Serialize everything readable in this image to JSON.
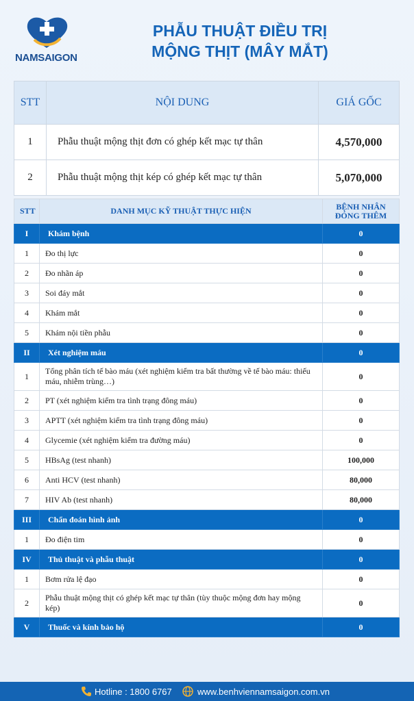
{
  "header": {
    "logo_text": "NAMSAIGON",
    "title_lines": [
      "PHẪU THUẬT ĐIỀU TRỊ",
      "MỘNG THỊT (MÂY MẮT)"
    ]
  },
  "price_table": {
    "columns": [
      "STT",
      "NỘI DUNG",
      "GIÁ GỐC"
    ],
    "rows": [
      [
        "1",
        "Phẫu thuật mộng thịt đơn có ghép kết mạc tự thân",
        "4,570,000"
      ],
      [
        "2",
        "Phẫu thuật mộng thịt kép có ghép kết mạc tự thân",
        "5,070,000"
      ]
    ]
  },
  "detail_table": {
    "columns": [
      "STT",
      "DANH MỤC KỸ THUẬT THỰC HIỆN",
      "BỆNH NHÂN ĐÓNG THÊM"
    ],
    "rows": [
      [
        "I",
        "Khám bệnh",
        "0"
      ],
      [
        "1",
        "Đo thị lực",
        "0"
      ],
      [
        "2",
        "Đo nhãn áp",
        "0"
      ],
      [
        "3",
        "Soi đáy mắt",
        "0"
      ],
      [
        "4",
        "Khám mắt",
        "0"
      ],
      [
        "5",
        "Khám nội tiền phẫu",
        "0"
      ],
      [
        "II",
        "Xét nghiệm máu",
        "0"
      ],
      [
        "1",
        "Tổng phân tích tế bào máu (xét nghiệm kiểm tra bất thường về tế bào máu: thiếu máu, nhiễm trùng…)",
        "0"
      ],
      [
        "2",
        "PT (xét nghiệm kiểm tra tình trạng đông máu)",
        "0"
      ],
      [
        "3",
        "APTT (xét nghiệm kiểm tra tình trạng đông máu)",
        "0"
      ],
      [
        "4",
        "Glycemie (xét nghiệm kiểm tra đường máu)",
        "0"
      ],
      [
        "5",
        "HBsAg (test nhanh)",
        "100,000"
      ],
      [
        "6",
        "Anti HCV (test nhanh)",
        "80,000"
      ],
      [
        "7",
        "HIV Ab (test nhanh)",
        "80,000"
      ],
      [
        "III",
        "Chẩn đoán hình ảnh",
        "0"
      ],
      [
        "1",
        "Đo điện tim",
        "0"
      ],
      [
        "IV",
        "Thủ thuật và phẫu thuật",
        "0"
      ],
      [
        "1",
        "Bơm rửa lệ đạo",
        "0"
      ],
      [
        "2",
        "Phẫu thuật mộng thịt có ghép kết mạc tự thân (tùy thuộc mộng đơn hay mộng kép)",
        "0"
      ],
      [
        "V",
        "Thuốc và kính bảo hộ",
        "0"
      ]
    ]
  },
  "footer": {
    "hotline": "Hotline : 1800 6767",
    "website": "www.benhviennamsaigon.com.vn"
  }
}
